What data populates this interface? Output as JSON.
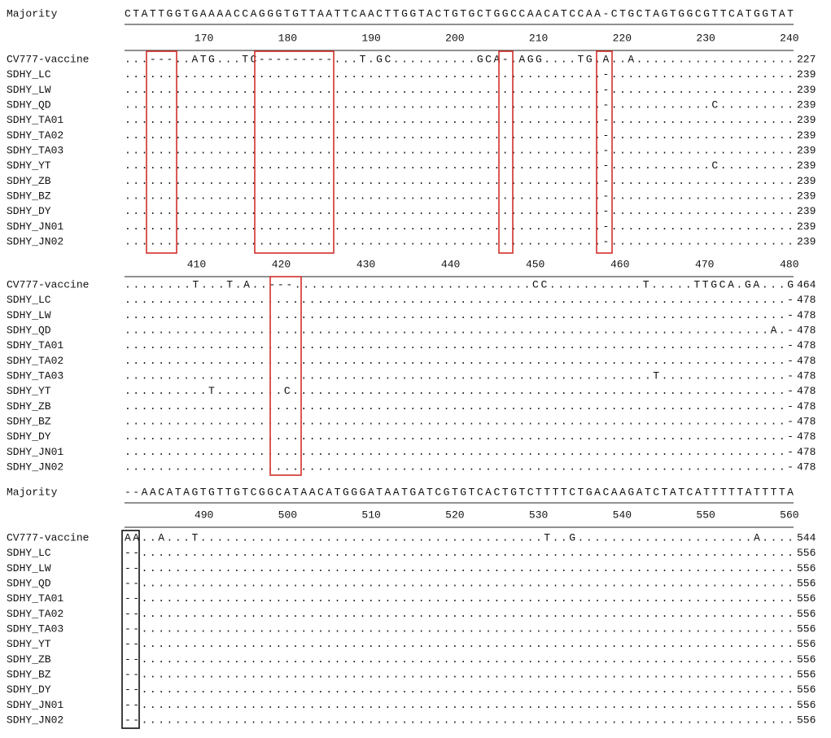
{
  "blocks": [
    {
      "majority": {
        "label": "Majority",
        "sequence": "CTATTGGTGAAAACCAGGGTGTTAATTCAACTTGGTACTGTGCTGGCCAACATCCAA-CTGCTAGTGGCGTTCATGGTAT"
      },
      "ruler": [
        170,
        180,
        190,
        200,
        210,
        220,
        230,
        240
      ],
      "rows": [
        {
          "name": "CV777-vaccine",
          "sequence": "...---..ATG...TC---------...T.GC..........GCA-.AGG....TG.A..A...................",
          "end": 227
        },
        {
          "name": "SDHY_LC",
          "sequence": ".........................................................-......................",
          "end": 239
        },
        {
          "name": "SDHY_LW",
          "sequence": ".........................................................-......................",
          "end": 239
        },
        {
          "name": "SDHY_QD",
          "sequence": ".........................................................-............C.........",
          "end": 239
        },
        {
          "name": "SDHY_TA01",
          "sequence": ".........................................................-......................",
          "end": 239
        },
        {
          "name": "SDHY_TA02",
          "sequence": ".........................................................-......................",
          "end": 239
        },
        {
          "name": "SDHY_TA03",
          "sequence": ".........................................................-......................",
          "end": 239
        },
        {
          "name": "SDHY_YT",
          "sequence": ".........................................................-............C.........",
          "end": 239
        },
        {
          "name": "SDHY_ZB",
          "sequence": ".........................................................-......................",
          "end": 239
        },
        {
          "name": "SDHY_BZ",
          "sequence": ".........................................................-......................",
          "end": 239
        },
        {
          "name": "SDHY_DY",
          "sequence": ".........................................................-......................",
          "end": 239
        },
        {
          "name": "SDHY_JN01",
          "sequence": ".........................................................-......................",
          "end": 239
        },
        {
          "name": "SDHY_JN02",
          "sequence": ".........................................................-......................",
          "end": 239
        }
      ]
    },
    {
      "ruler": [
        410,
        420,
        430,
        440,
        450,
        460,
        470,
        480
      ],
      "rows": [
        {
          "name": "CV777-vaccine",
          "sequence": "........T...T.A..---............................CC...........T.....TTGCA.GA...G",
          "end": 464
        },
        {
          "name": "SDHY_LC",
          "sequence": "...............................................................................-",
          "end": 478
        },
        {
          "name": "SDHY_LW",
          "sequence": "...............................................................................-",
          "end": 478
        },
        {
          "name": "SDHY_QD",
          "sequence": ".............................................................................A.-",
          "end": 478
        },
        {
          "name": "SDHY_TA01",
          "sequence": "...............................................................................-",
          "end": 478
        },
        {
          "name": "SDHY_TA02",
          "sequence": "...............................................................................-",
          "end": 478
        },
        {
          "name": "SDHY_TA03",
          "sequence": "...............................................................T...............-",
          "end": 478
        },
        {
          "name": "SDHY_YT",
          "sequence": "..........T........C...........................................................-",
          "end": 478
        },
        {
          "name": "SDHY_ZB",
          "sequence": "...............................................................................-",
          "end": 478
        },
        {
          "name": "SDHY_BZ",
          "sequence": "...............................................................................-",
          "end": 478
        },
        {
          "name": "SDHY_DY",
          "sequence": "...............................................................................-",
          "end": 478
        },
        {
          "name": "SDHY_JN01",
          "sequence": "...............................................................................-",
          "end": 478
        },
        {
          "name": "SDHY_JN02",
          "sequence": "...............................................................................-",
          "end": 478
        }
      ]
    },
    {
      "majority": {
        "label": "Majority",
        "sequence": "--AACATAGTGTTGTCGGCATAACATGGGATAATGATCGTGTCACTGTCTTTTCTGACAAGATCTATCATTTTTATTTTA"
      },
      "ruler": [
        490,
        500,
        510,
        520,
        530,
        540,
        550,
        560
      ],
      "rows": [
        {
          "name": "CV777-vaccine",
          "sequence": "AA..A...T.........................................T..G.....................A....",
          "end": 544
        },
        {
          "name": "SDHY_LC",
          "sequence": "--..............................................................................",
          "end": 556
        },
        {
          "name": "SDHY_LW",
          "sequence": "--..............................................................................",
          "end": 556
        },
        {
          "name": "SDHY_QD",
          "sequence": "--..............................................................................",
          "end": 556
        },
        {
          "name": "SDHY_TA01",
          "sequence": "--..............................................................................",
          "end": 556
        },
        {
          "name": "SDHY_TA02",
          "sequence": "--..............................................................................",
          "end": 556
        },
        {
          "name": "SDHY_TA03",
          "sequence": "--..............................................................................",
          "end": 556
        },
        {
          "name": "SDHY_YT",
          "sequence": "--..............................................................................",
          "end": 556
        },
        {
          "name": "SDHY_ZB",
          "sequence": "--..............................................................................",
          "end": 556
        },
        {
          "name": "SDHY_BZ",
          "sequence": "--..............................................................................",
          "end": 556
        },
        {
          "name": "SDHY_DY",
          "sequence": "--..............................................................................",
          "end": 556
        },
        {
          "name": "SDHY_JN01",
          "sequence": "--..............................................................................",
          "end": 556
        },
        {
          "name": "SDHY_JN02",
          "sequence": "--..............................................................................",
          "end": 556
        }
      ]
    }
  ]
}
